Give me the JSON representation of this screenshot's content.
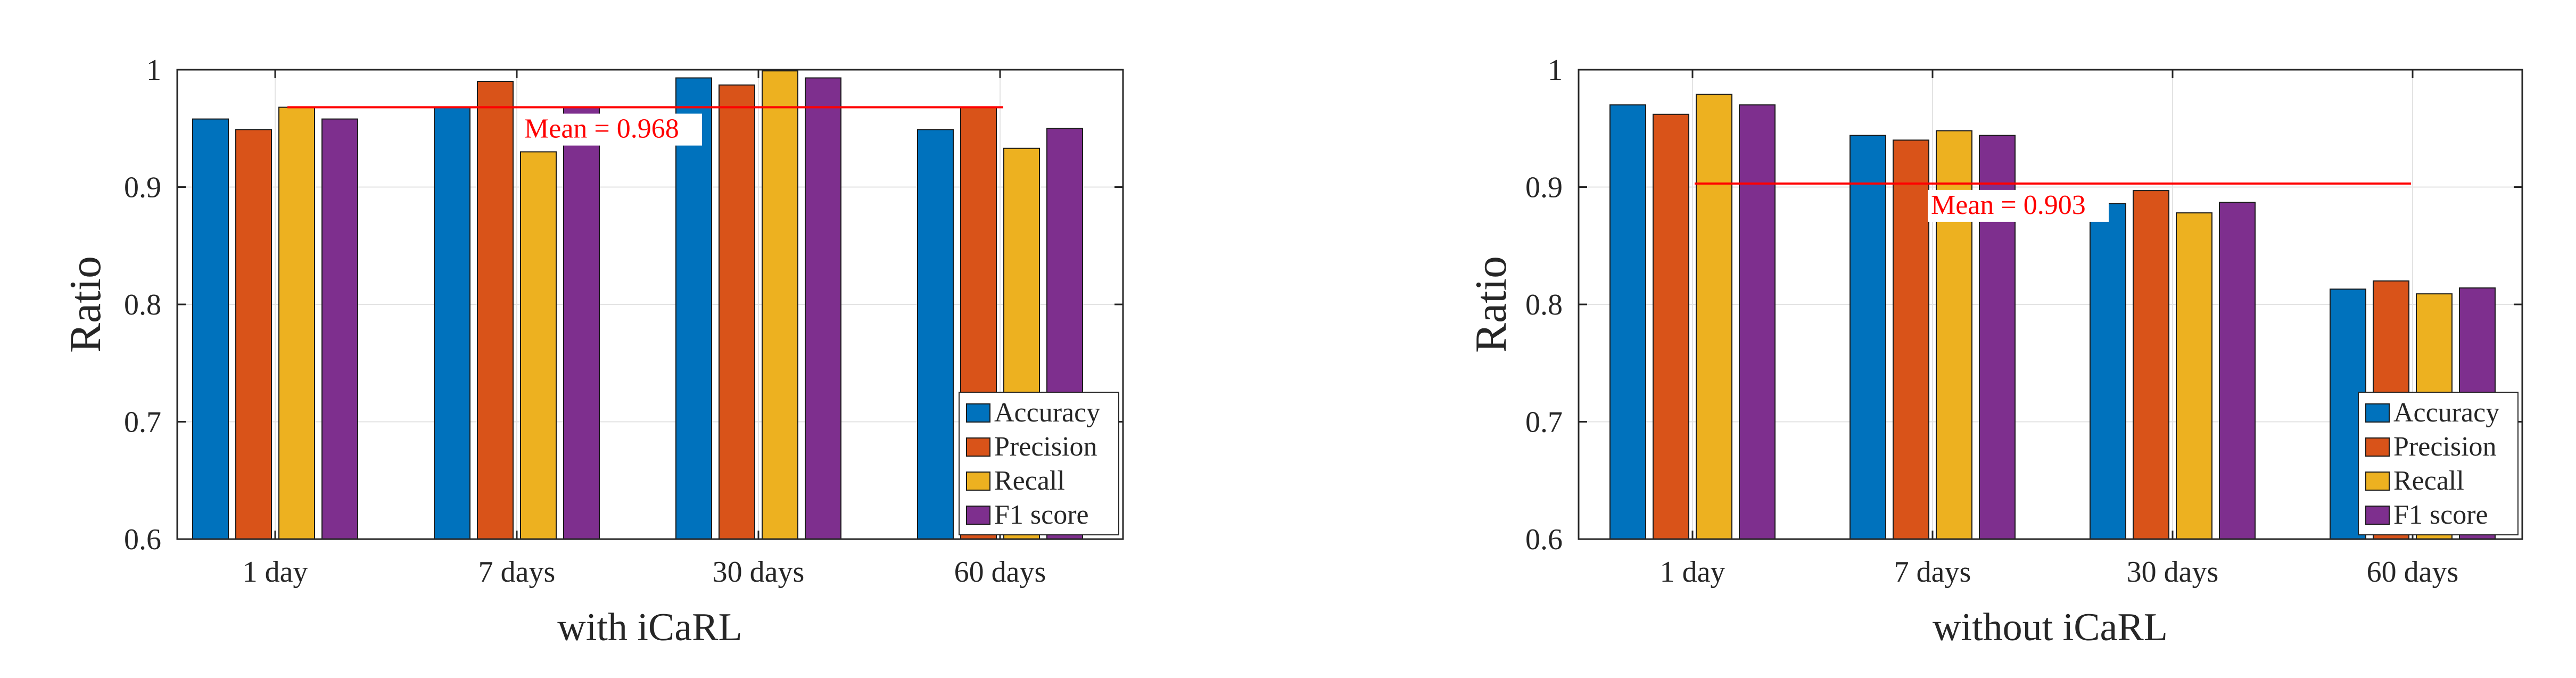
{
  "colors": {
    "Accuracy": "#0072bd",
    "Precision": "#d95319",
    "Recall": "#edb120",
    "F1 score": "#7e2f8e",
    "mean_line": "#ff0000"
  },
  "chart_data": [
    {
      "type": "bar",
      "caption": "with iCaRL",
      "ylabel": "Ratio",
      "xlabel": "",
      "categories": [
        "1 day",
        "7 days",
        "30 days",
        "60 days"
      ],
      "ylim": [
        0.6,
        1.0
      ],
      "yticks": [
        0.6,
        0.7,
        0.8,
        0.9,
        1.0
      ],
      "ytick_labels": [
        "0.6",
        "0.7",
        "0.8",
        "0.9",
        "1"
      ],
      "grid": true,
      "legend_position": "bottom-right",
      "series": [
        {
          "name": "Accuracy",
          "values": [
            0.958,
            0.968,
            0.993,
            0.949
          ]
        },
        {
          "name": "Precision",
          "values": [
            0.949,
            0.99,
            0.987,
            0.968
          ]
        },
        {
          "name": "Recall",
          "values": [
            0.968,
            0.93,
            0.999,
            0.933
          ]
        },
        {
          "name": "F1 score",
          "values": [
            0.958,
            0.968,
            0.993,
            0.95
          ]
        }
      ],
      "mean": {
        "value": 0.968,
        "label": "Mean = 0.968"
      }
    },
    {
      "type": "bar",
      "caption": "without iCaRL",
      "ylabel": "Ratio",
      "xlabel": "",
      "categories": [
        "1 day",
        "7 days",
        "30 days",
        "60 days"
      ],
      "ylim": [
        0.6,
        1.0
      ],
      "yticks": [
        0.6,
        0.7,
        0.8,
        0.9,
        1.0
      ],
      "ytick_labels": [
        "0.6",
        "0.7",
        "0.8",
        "0.9",
        "1"
      ],
      "grid": true,
      "legend_position": "bottom-right",
      "series": [
        {
          "name": "Accuracy",
          "values": [
            0.97,
            0.944,
            0.886,
            0.813
          ]
        },
        {
          "name": "Precision",
          "values": [
            0.962,
            0.94,
            0.897,
            0.82
          ]
        },
        {
          "name": "Recall",
          "values": [
            0.979,
            0.948,
            0.878,
            0.809
          ]
        },
        {
          "name": "F1 score",
          "values": [
            0.97,
            0.944,
            0.887,
            0.814
          ]
        }
      ],
      "mean": {
        "value": 0.903,
        "label": "Mean = 0.903"
      }
    }
  ]
}
